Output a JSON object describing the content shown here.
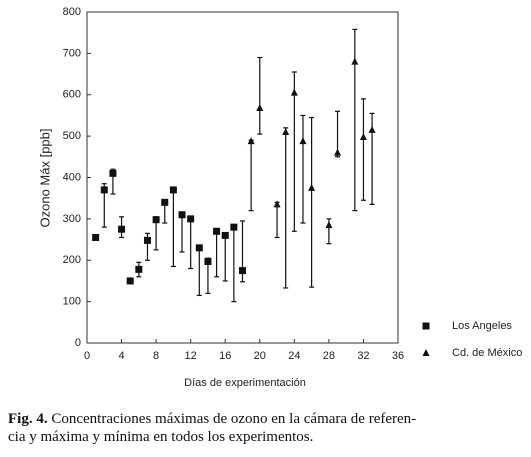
{
  "chart_data": {
    "type": "errorbar",
    "xlabel": "Días de experimentación",
    "ylabel": "Ozono Máx [ppb]",
    "xlim": [
      0,
      36
    ],
    "xticks": [
      0,
      4,
      8,
      12,
      16,
      20,
      24,
      28,
      32,
      36
    ],
    "ylim": [
      0,
      800
    ],
    "yticks": [
      0,
      100,
      200,
      300,
      400,
      500,
      600,
      700,
      800
    ],
    "series": [
      {
        "name": "Los Angeles",
        "marker": "square",
        "color": "#111111",
        "x": [
          1,
          2,
          3,
          4,
          5,
          6,
          7,
          8,
          9,
          10,
          11,
          12,
          13,
          14,
          15,
          16,
          17,
          18
        ],
        "values": [
          255,
          370,
          410,
          275,
          150,
          178,
          248,
          298,
          340,
          370,
          310,
          300,
          230,
          197,
          270,
          260,
          280,
          175
        ],
        "min": [
          252,
          280,
          360,
          255,
          145,
          160,
          200,
          225,
          290,
          185,
          220,
          180,
          115,
          120,
          160,
          150,
          100,
          148
        ],
        "max": [
          258,
          385,
          420,
          305,
          155,
          195,
          265,
          305,
          345,
          375,
          315,
          305,
          235,
          205,
          275,
          265,
          285,
          295
        ]
      },
      {
        "name": "Cd. de México",
        "marker": "triangle",
        "color": "#111111",
        "x": [
          19,
          20,
          22,
          23,
          24,
          25,
          26,
          28,
          29,
          31,
          32,
          33
        ],
        "values": [
          488,
          568,
          335,
          510,
          605,
          488,
          375,
          285,
          460,
          680,
          498,
          515
        ],
        "min": [
          320,
          505,
          255,
          133,
          270,
          290,
          135,
          240,
          450,
          320,
          345,
          335
        ],
        "max": [
          490,
          690,
          340,
          520,
          655,
          550,
          545,
          300,
          560,
          758,
          590,
          555
        ]
      }
    ]
  },
  "caption": {
    "label": "Fig. 4.",
    "lines": [
      "Concentraciones máximas de ozono en la cámara de referen-",
      "cia y máxima y mínima en todos los experimentos."
    ]
  }
}
